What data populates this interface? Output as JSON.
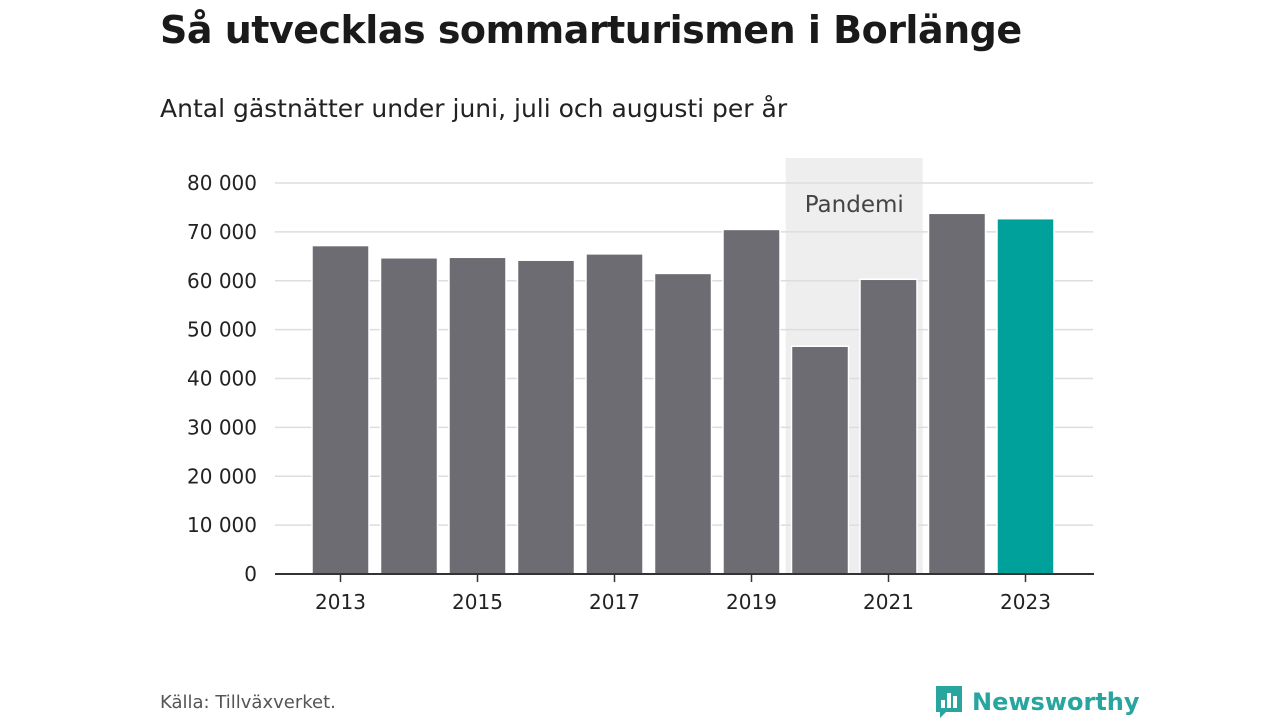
{
  "header": {
    "title": "Så utvecklas sommarturismen i Borlänge",
    "subtitle": "Antal gästnätter under juni, juli och augusti per år"
  },
  "chart_data": {
    "type": "bar",
    "categories": [
      "2013",
      "2014",
      "2015",
      "2016",
      "2017",
      "2018",
      "2019",
      "2020",
      "2021",
      "2022",
      "2023"
    ],
    "values": [
      67200,
      64700,
      64800,
      64200,
      65500,
      61500,
      70500,
      46600,
      60300,
      73800,
      72700
    ],
    "tick_labels_x": [
      "2013",
      "2015",
      "2017",
      "2019",
      "2021",
      "2023"
    ],
    "tick_labels_y": [
      "0",
      "10 000",
      "20 000",
      "30 000",
      "40 000",
      "50 000",
      "60 000",
      "70 000",
      "80 000"
    ],
    "ylim": [
      0,
      80000
    ],
    "grid": true,
    "bar_color": "#6d6c73",
    "highlight_color": "#00a19a",
    "highlight_category": "2023",
    "annotation": {
      "label": "Pandemi",
      "from": "2020",
      "to": "2021",
      "shade_color": "#eeeeee"
    }
  },
  "footer": {
    "source": "Källa: Tillväxverket.",
    "brand": "Newsworthy",
    "brand_color": "#27a59e",
    "brand_icon": "bar-chart-speech-bubble-icon"
  }
}
